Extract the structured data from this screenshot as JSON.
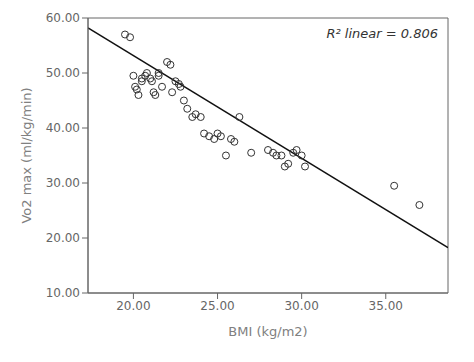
{
  "chart_data": {
    "type": "scatter",
    "xlabel": "BMI (kg/m2)",
    "ylabel": "Vo2 max (ml/kg/min)",
    "annotation": "R² linear = 0.806",
    "grid": false,
    "xlim": [
      17.3,
      38.7
    ],
    "ylim": [
      10.0,
      60.0
    ],
    "xticks": [
      {
        "value": 20.0,
        "label": "20.00"
      },
      {
        "value": 25.0,
        "label": "25.00"
      },
      {
        "value": 30.0,
        "label": "30.00"
      },
      {
        "value": 35.0,
        "label": "35.00"
      }
    ],
    "yticks": [
      {
        "value": 10.0,
        "label": "10.00"
      },
      {
        "value": 20.0,
        "label": "20.00"
      },
      {
        "value": 30.0,
        "label": "30.00"
      },
      {
        "value": 40.0,
        "label": "40.00"
      },
      {
        "value": 50.0,
        "label": "50.00"
      },
      {
        "value": 60.0,
        "label": "60.00"
      }
    ],
    "series": [
      {
        "type": "scatter",
        "marker": "open_circle",
        "color": "#333333",
        "x": [
          19.5,
          19.8,
          20.0,
          20.1,
          20.2,
          20.3,
          20.5,
          20.5,
          20.7,
          20.8,
          21.0,
          21.1,
          21.2,
          21.3,
          21.5,
          21.5,
          21.7,
          22.0,
          22.2,
          22.3,
          22.5,
          22.7,
          22.8,
          23.0,
          23.2,
          23.5,
          23.7,
          24.0,
          24.2,
          24.5,
          24.8,
          25.0,
          25.2,
          25.5,
          25.8,
          26.0,
          26.3,
          27.0,
          28.0,
          28.3,
          28.5,
          28.8,
          29.0,
          29.2,
          29.5,
          29.7,
          30.0,
          30.2,
          35.5,
          37.0
        ],
        "values": [
          57.0,
          56.5,
          49.5,
          47.5,
          47.0,
          46.0,
          49.0,
          48.5,
          49.5,
          50.0,
          49.0,
          48.5,
          46.5,
          46.0,
          50.0,
          49.5,
          47.5,
          52.0,
          51.5,
          46.5,
          48.5,
          48.0,
          47.5,
          45.0,
          43.5,
          42.0,
          42.5,
          42.0,
          39.0,
          38.5,
          38.0,
          39.0,
          38.5,
          35.0,
          38.0,
          37.5,
          42.0,
          35.5,
          36.0,
          35.5,
          35.0,
          35.0,
          33.0,
          33.5,
          35.5,
          36.0,
          35.0,
          33.0,
          29.5,
          26.0
        ]
      },
      {
        "type": "line",
        "line_style": "solid",
        "color": "#111111",
        "x": [
          17.3,
          38.7
        ],
        "values": [
          58.2009,
          18.2471
        ]
      }
    ]
  }
}
